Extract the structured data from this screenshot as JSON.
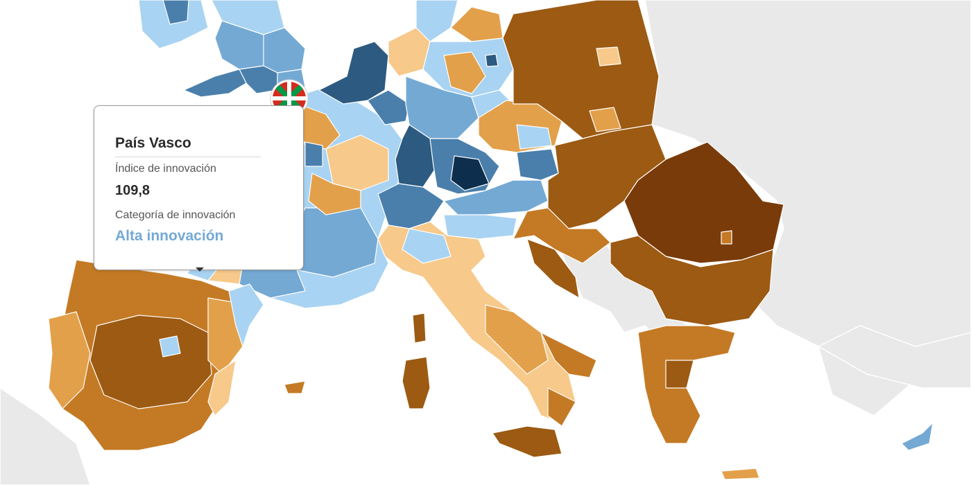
{
  "tooltip": {
    "region": "País Vasco",
    "index_label": "Índice de innovación",
    "index_value": "109,8",
    "category_label": "Categoría de innovación",
    "category_value": "Alta innovación"
  }
}
